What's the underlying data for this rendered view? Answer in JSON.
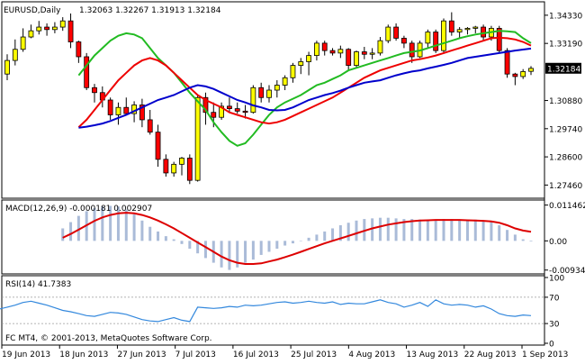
{
  "header": {
    "symbol_label": "EURUSD,Daily",
    "ohlc_text": "1.32063 1.32267 1.31913 1.32184"
  },
  "footer": {
    "copyright": "FC MT4, © 2001-2013, MetaQuotes Software Corp."
  },
  "colors": {
    "bull_body": "#ffff00",
    "bear_body": "#ff0000",
    "candle_edge": "#000000",
    "ma_fast": "#22bb22",
    "ma_mid": "#ee0000",
    "ma_slow": "#0000cc",
    "macd_hist": "#aabbd8",
    "macd_signal": "#dd0000",
    "rsi_line": "#3388dd",
    "grid": "#999999"
  },
  "chart_data": [
    {
      "type": "candlestick",
      "title": "EURUSD,Daily",
      "ylim": [
        1.27,
        1.348
      ],
      "y_ticks": [
        "1.34330",
        "1.33190",
        "1.32184",
        "1.30880",
        "1.29740",
        "1.28600",
        "1.27460"
      ],
      "current_price_label": "1.32184",
      "x_tick_labels": [
        "19 Jun 2013",
        "18 Jun 2013",
        "27 Jun 2013",
        "7 Jul 2013",
        "16 Jul 2013",
        "25 Jul 2013",
        "4 Aug 2013",
        "13 Aug 2013",
        "22 Aug 2013",
        "1 Sep 2013"
      ],
      "candles": [
        [
          1.3195,
          1.3275,
          1.317,
          1.325
        ],
        [
          1.325,
          1.3335,
          1.323,
          1.3295
        ],
        [
          1.3295,
          1.338,
          1.3285,
          1.3345
        ],
        [
          1.3345,
          1.3395,
          1.334,
          1.337
        ],
        [
          1.337,
          1.341,
          1.3355,
          1.3385
        ],
        [
          1.3385,
          1.34,
          1.335,
          1.3375
        ],
        [
          1.3375,
          1.3405,
          1.336,
          1.3385
        ],
        [
          1.3385,
          1.3425,
          1.337,
          1.341
        ],
        [
          1.341,
          1.344,
          1.33,
          1.3325
        ],
        [
          1.3325,
          1.333,
          1.324,
          1.3265
        ],
        [
          1.3265,
          1.328,
          1.313,
          1.314
        ],
        [
          1.314,
          1.3155,
          1.308,
          1.312
        ],
        [
          1.312,
          1.3145,
          1.306,
          1.309
        ],
        [
          1.309,
          1.31,
          1.301,
          1.303
        ],
        [
          1.303,
          1.308,
          1.299,
          1.306
        ],
        [
          1.306,
          1.31,
          1.303,
          1.3035
        ],
        [
          1.3035,
          1.3085,
          1.3,
          1.307
        ],
        [
          1.307,
          1.3095,
          1.298,
          1.301
        ],
        [
          1.301,
          1.305,
          1.295,
          1.296
        ],
        [
          1.296,
          1.299,
          1.282,
          1.285
        ],
        [
          1.285,
          1.287,
          1.278,
          1.2795
        ],
        [
          1.2795,
          1.284,
          1.278,
          1.283
        ],
        [
          1.283,
          1.286,
          1.2785,
          1.2855
        ],
        [
          1.2855,
          1.287,
          1.275,
          1.2765
        ],
        [
          1.2765,
          1.311,
          1.276,
          1.31
        ],
        [
          1.31,
          1.312,
          1.299,
          1.304
        ],
        [
          1.304,
          1.308,
          1.298,
          1.302
        ],
        [
          1.302,
          1.308,
          1.301,
          1.3065
        ],
        [
          1.3065,
          1.31,
          1.304,
          1.3055
        ],
        [
          1.3055,
          1.308,
          1.3035,
          1.3045
        ],
        [
          1.3045,
          1.307,
          1.3015,
          1.304
        ],
        [
          1.304,
          1.315,
          1.3035,
          1.314
        ],
        [
          1.314,
          1.316,
          1.308,
          1.31
        ],
        [
          1.31,
          1.315,
          1.308,
          1.313
        ],
        [
          1.313,
          1.317,
          1.31,
          1.315
        ],
        [
          1.315,
          1.319,
          1.313,
          1.318
        ],
        [
          1.318,
          1.324,
          1.316,
          1.323
        ],
        [
          1.323,
          1.326,
          1.3195,
          1.3245
        ],
        [
          1.3245,
          1.3285,
          1.319,
          1.327
        ],
        [
          1.327,
          1.333,
          1.325,
          1.332
        ],
        [
          1.332,
          1.333,
          1.327,
          1.329
        ],
        [
          1.329,
          1.33,
          1.327,
          1.328
        ],
        [
          1.328,
          1.331,
          1.326,
          1.3295
        ],
        [
          1.3295,
          1.33,
          1.321,
          1.323
        ],
        [
          1.323,
          1.329,
          1.322,
          1.3285
        ],
        [
          1.3285,
          1.3305,
          1.3255,
          1.3275
        ],
        [
          1.3275,
          1.33,
          1.3255,
          1.328
        ],
        [
          1.328,
          1.3345,
          1.327,
          1.333
        ],
        [
          1.333,
          1.3395,
          1.332,
          1.3385
        ],
        [
          1.3385,
          1.34,
          1.333,
          1.334
        ],
        [
          1.334,
          1.335,
          1.33,
          1.332
        ],
        [
          1.332,
          1.333,
          1.324,
          1.3265
        ],
        [
          1.3265,
          1.333,
          1.326,
          1.332
        ],
        [
          1.332,
          1.3375,
          1.33,
          1.3365
        ],
        [
          1.3365,
          1.3375,
          1.328,
          1.329
        ],
        [
          1.329,
          1.342,
          1.328,
          1.341
        ],
        [
          1.341,
          1.3445,
          1.335,
          1.3365
        ],
        [
          1.3365,
          1.3385,
          1.334,
          1.3375
        ],
        [
          1.3375,
          1.3385,
          1.3355,
          1.338
        ],
        [
          1.338,
          1.339,
          1.336,
          1.3385
        ],
        [
          1.3385,
          1.3395,
          1.333,
          1.3345
        ],
        [
          1.3345,
          1.339,
          1.333,
          1.338
        ],
        [
          1.338,
          1.339,
          1.328,
          1.329
        ],
        [
          1.329,
          1.33,
          1.318,
          1.3195
        ],
        [
          1.3195,
          1.32,
          1.315,
          1.3185
        ],
        [
          1.3185,
          1.3215,
          1.3175,
          1.3205
        ],
        [
          1.3206,
          1.3227,
          1.3191,
          1.3218
        ]
      ],
      "series": [
        {
          "values": [
            1.319,
            1.323,
            1.327,
            1.33,
            1.333,
            1.335,
            1.336,
            1.3355,
            1.334,
            1.33,
            1.326,
            1.323,
            1.32,
            1.316,
            1.312,
            1.3085,
            1.305,
            1.3,
            1.296,
            1.2925,
            1.2905,
            1.2915,
            1.295,
            1.299,
            1.303,
            1.306,
            1.308,
            1.3095,
            1.311,
            1.313,
            1.315,
            1.316,
            1.3175,
            1.319,
            1.321,
            1.322,
            1.323,
            1.324,
            1.325,
            1.326,
            1.327,
            1.328,
            1.3285,
            1.329,
            1.33,
            1.331,
            1.332,
            1.333,
            1.334,
            1.3348,
            1.3355,
            1.336,
            1.3365,
            1.337,
            1.3368,
            1.3365,
            1.334,
            1.332
          ]
        },
        {
          "values": [
            1.298,
            1.301,
            1.305,
            1.309,
            1.313,
            1.317,
            1.32,
            1.323,
            1.325,
            1.326,
            1.325,
            1.323,
            1.32,
            1.317,
            1.314,
            1.311,
            1.309,
            1.3075,
            1.306,
            1.304,
            1.303,
            1.302,
            1.301,
            1.3,
            1.2995,
            1.3,
            1.301,
            1.3025,
            1.304,
            1.3055,
            1.307,
            1.3085,
            1.31,
            1.312,
            1.314,
            1.316,
            1.318,
            1.3195,
            1.321,
            1.322,
            1.323,
            1.324,
            1.325,
            1.3255,
            1.3262,
            1.327,
            1.328,
            1.329,
            1.33,
            1.331,
            1.332,
            1.333,
            1.334,
            1.3342,
            1.334,
            1.3335,
            1.3325,
            1.331
          ]
        },
        {
          "values": [
            1.2978,
            1.2982,
            1.2988,
            1.2995,
            1.3005,
            1.3018,
            1.303,
            1.3045,
            1.306,
            1.3075,
            1.309,
            1.31,
            1.311,
            1.3125,
            1.314,
            1.315,
            1.3145,
            1.3135,
            1.312,
            1.3105,
            1.309,
            1.308,
            1.3068,
            1.306,
            1.305,
            1.3048,
            1.305,
            1.306,
            1.3075,
            1.309,
            1.31,
            1.311,
            1.3118,
            1.3128,
            1.314,
            1.315,
            1.316,
            1.3165,
            1.317,
            1.318,
            1.319,
            1.3198,
            1.3205,
            1.321,
            1.3218,
            1.3225,
            1.3232,
            1.324,
            1.325,
            1.326,
            1.3265,
            1.327,
            1.3275,
            1.328,
            1.3285,
            1.329,
            1.3294,
            1.3298
          ]
        }
      ]
    },
    {
      "type": "bar",
      "title": "MACD(12,26,9) -0.000181 0.002907",
      "ylim": [
        -0.01,
        0.0125
      ],
      "y_ticks": [
        "0.011462",
        "0.00",
        "-0.009348"
      ],
      "histogram": [
        0.004,
        0.006,
        0.008,
        0.0095,
        0.0105,
        0.011,
        0.0112,
        0.011,
        0.01,
        0.0085,
        0.0065,
        0.0045,
        0.003,
        0.0015,
        0.0005,
        -0.001,
        -0.0025,
        -0.004,
        -0.0055,
        -0.007,
        -0.0085,
        -0.0093,
        -0.0085,
        -0.007,
        -0.006,
        -0.0045,
        -0.0035,
        -0.0025,
        -0.0015,
        -0.0008,
        0.0,
        0.001,
        0.002,
        0.003,
        0.004,
        0.005,
        0.0058,
        0.0065,
        0.007,
        0.0072,
        0.0074,
        0.0074,
        0.0072,
        0.007,
        0.007,
        0.0068,
        0.0066,
        0.0068,
        0.007,
        0.007,
        0.0068,
        0.0066,
        0.0068,
        0.0066,
        0.0062,
        0.005,
        0.0035,
        0.002,
        0.0005,
        -0.0002
      ],
      "signal": [
        0.001,
        0.0022,
        0.0036,
        0.005,
        0.0064,
        0.0075,
        0.0083,
        0.0088,
        0.009,
        0.0088,
        0.0083,
        0.0075,
        0.0065,
        0.0053,
        0.004,
        0.0025,
        0.001,
        -0.0005,
        -0.002,
        -0.0035,
        -0.005,
        -0.0062,
        -0.007,
        -0.0074,
        -0.0074,
        -0.0072,
        -0.0066,
        -0.006,
        -0.0052,
        -0.0044,
        -0.0035,
        -0.0026,
        -0.0017,
        -0.0008,
        0.0,
        0.0008,
        0.0016,
        0.0024,
        0.0032,
        0.004,
        0.0046,
        0.0052,
        0.0056,
        0.006,
        0.0063,
        0.0065,
        0.0066,
        0.0067,
        0.0067,
        0.0067,
        0.0067,
        0.0066,
        0.0065,
        0.0064,
        0.0062,
        0.0058,
        0.005,
        0.004,
        0.0033,
        0.0029
      ]
    },
    {
      "type": "line",
      "title": "RSI(14) 41.7383",
      "ylim": [
        0,
        100
      ],
      "y_ticks": [
        "100",
        "70",
        "30",
        "0"
      ],
      "levels": [
        70,
        30
      ],
      "values": [
        52,
        55,
        58,
        62,
        64,
        61,
        58,
        54,
        50,
        48,
        45,
        42,
        41,
        44,
        47,
        46,
        44,
        40,
        36,
        34,
        33,
        36,
        39,
        35,
        33,
        55,
        54,
        53,
        54,
        56,
        55,
        58,
        57,
        58,
        60,
        62,
        63,
        61,
        62,
        64,
        62,
        61,
        63,
        59,
        61,
        60,
        60,
        63,
        66,
        62,
        60,
        55,
        58,
        62,
        56,
        66,
        60,
        58,
        59,
        58,
        55,
        57,
        52,
        45,
        42,
        41,
        43,
        42
      ]
    }
  ]
}
